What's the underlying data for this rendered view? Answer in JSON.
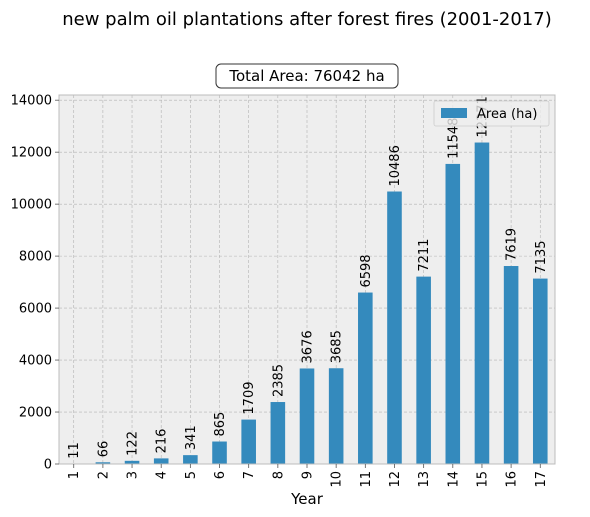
{
  "chart_data": {
    "type": "bar",
    "title": "new palm oil plantations after forest fires (2001-2017)",
    "annotation": "Total Area: 76042 ha",
    "xlabel": "Year",
    "ylabel": "",
    "categories": [
      "1",
      "2",
      "3",
      "4",
      "5",
      "6",
      "7",
      "8",
      "9",
      "10",
      "11",
      "12",
      "13",
      "14",
      "15",
      "16",
      "17"
    ],
    "series": [
      {
        "name": "Area (ha)",
        "values": [
          11,
          66,
          122,
          216,
          341,
          865,
          1709,
          2385,
          3676,
          3685,
          6598,
          10486,
          7211,
          11548,
          12371,
          7619,
          7135
        ]
      }
    ],
    "data_labels": [
      "11",
      "66",
      "122",
      "216",
      "341",
      "865",
      "1709",
      "2385",
      "3676",
      "3685",
      "6598",
      "10486",
      "7211",
      "11548",
      "12371",
      "7619",
      "7135"
    ],
    "ylim": [
      0,
      14200
    ],
    "yticks": [
      0,
      2000,
      4000,
      6000,
      8000,
      10000,
      12000,
      14000
    ],
    "ytick_labels": [
      "0",
      "2000",
      "4000",
      "6000",
      "8000",
      "10000",
      "12000",
      "14000"
    ],
    "grid": true,
    "legend_position": "upper-right",
    "colors": {
      "bar": "#348abd",
      "plot_bg": "#eeeeee",
      "grid": "#b2b2b2",
      "frame": "#bcbcbc"
    }
  }
}
